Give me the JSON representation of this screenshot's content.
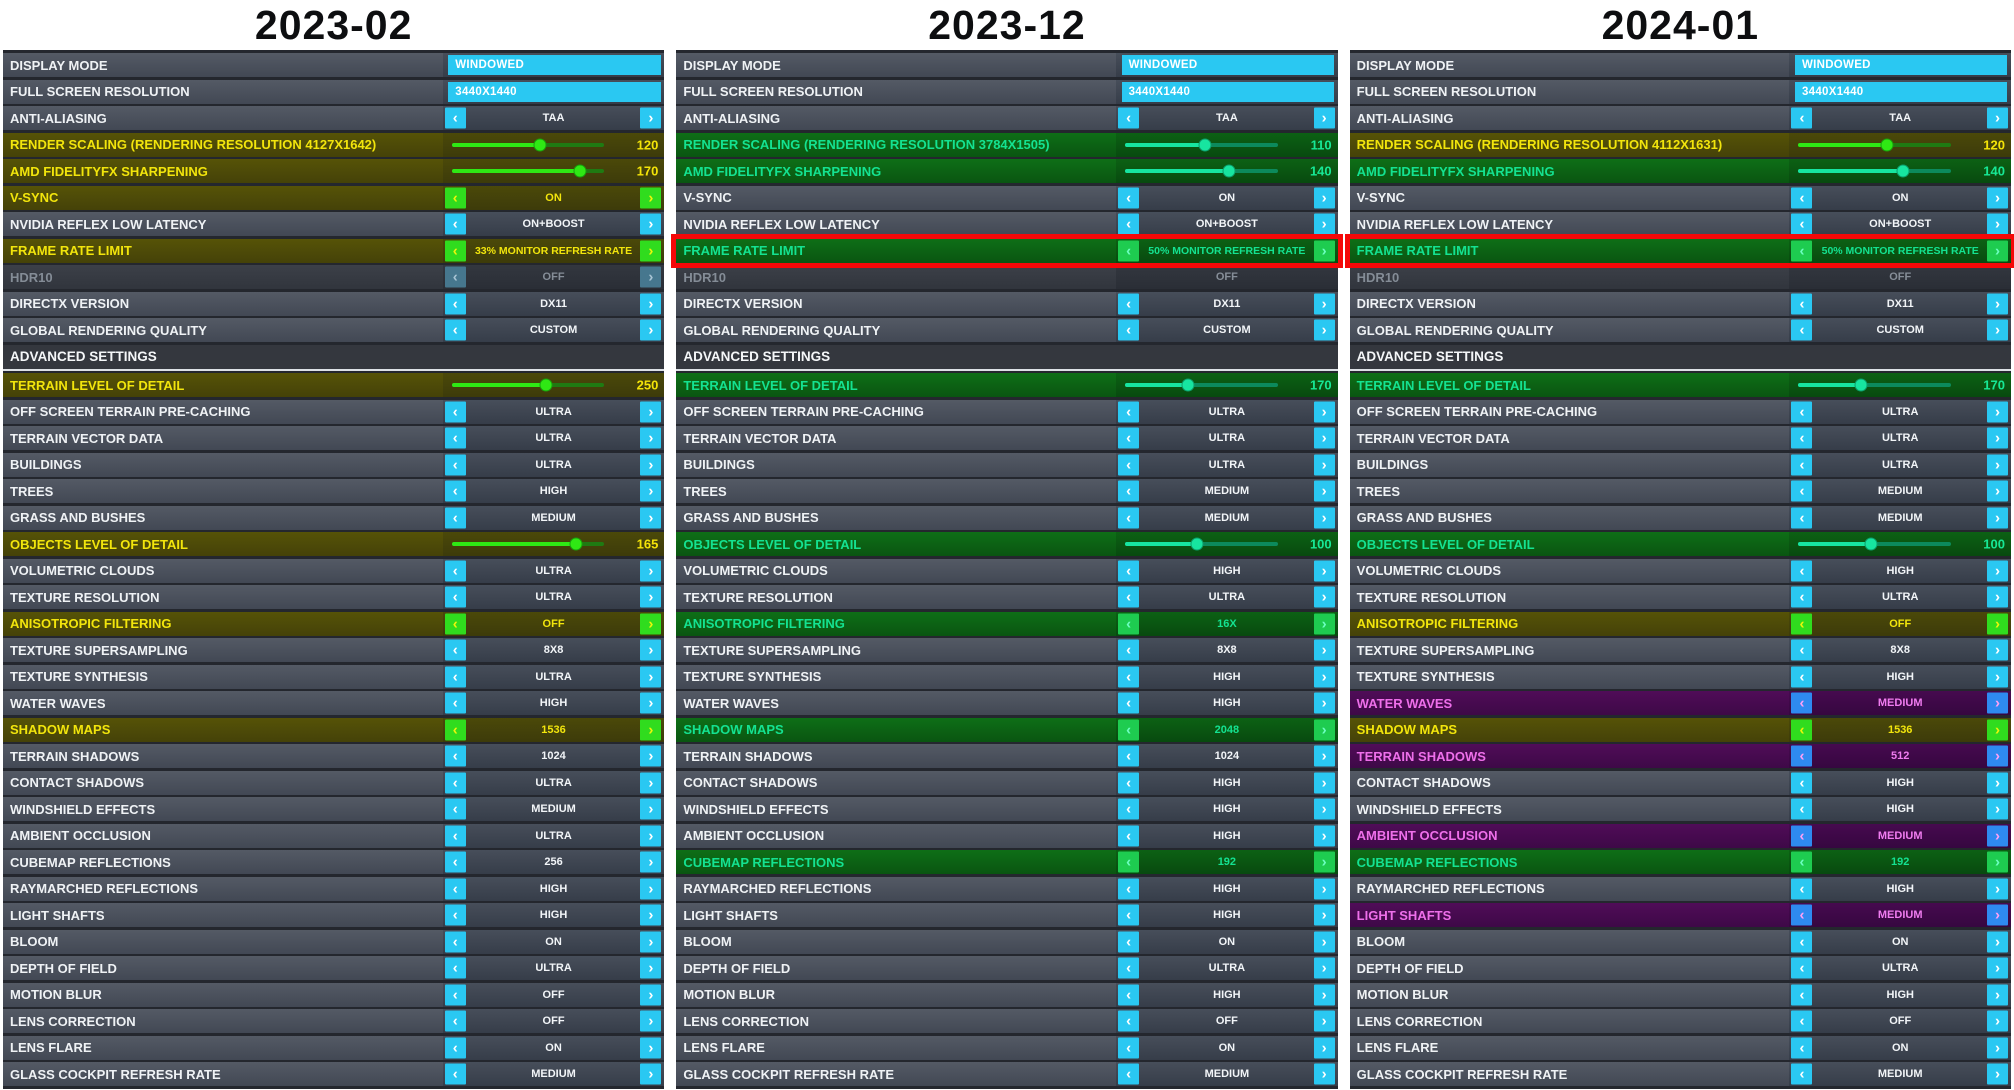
{
  "icons": {
    "left_chevron": "‹",
    "right_chevron": "›"
  },
  "colors": {
    "cyan_accent": "#2ac8f2",
    "yellow_highlight_text": "#f2e50c",
    "green_highlight_text": "#14e291",
    "purple_highlight_text": "#ee6fea",
    "green_button": "#30dc1e",
    "green_button_alt": "#1ecc50",
    "blue_button": "#2e8af0",
    "red_annotation": "#f50808",
    "slider_green": "#2fe814",
    "slider_springgreen": "#17e5a0"
  },
  "columns": [
    {
      "title": "2023-02",
      "rows": [
        {
          "label": "DISPLAY MODE",
          "type": "display",
          "value": "WINDOWED",
          "hl": "none"
        },
        {
          "label": "FULL SCREEN RESOLUTION",
          "type": "display",
          "value": "3440X1440",
          "hl": "none"
        },
        {
          "label": "ANTI-ALIASING",
          "type": "select",
          "value": "TAA",
          "hl": "none"
        },
        {
          "label": "RENDER SCALING (RENDERING RESOLUTION 4127X1642)",
          "type": "slider",
          "value": 120,
          "min": 10,
          "max": 200,
          "hl": "yellow"
        },
        {
          "label": "AMD FIDELITYFX SHARPENING",
          "type": "slider",
          "value": 170,
          "min": 10,
          "max": 200,
          "hl": "yellow"
        },
        {
          "label": "V-SYNC",
          "type": "select",
          "value": "ON",
          "hl": "yellow"
        },
        {
          "label": "NVIDIA REFLEX LOW LATENCY",
          "type": "select",
          "value": "ON+BOOST",
          "hl": "none"
        },
        {
          "label": "FRAME RATE LIMIT",
          "type": "select",
          "value": "33% MONITOR REFRESH RATE",
          "hl": "yellow"
        },
        {
          "label": "HDR10",
          "type": "select",
          "value": "OFF",
          "hl": "disabled",
          "arrows": true
        },
        {
          "label": "DIRECTX VERSION",
          "type": "select",
          "value": "DX11",
          "hl": "none"
        },
        {
          "label": "GLOBAL RENDERING QUALITY",
          "type": "select",
          "value": "CUSTOM",
          "hl": "none"
        },
        {
          "label": "ADVANCED SETTINGS",
          "type": "section"
        },
        {
          "label": "TERRAIN LEVEL OF DETAIL",
          "type": "slider",
          "value": 250,
          "min": 10,
          "max": 400,
          "hl": "yellow"
        },
        {
          "label": "OFF SCREEN TERRAIN PRE-CACHING",
          "type": "select",
          "value": "ULTRA",
          "hl": "none"
        },
        {
          "label": "TERRAIN VECTOR DATA",
          "type": "select",
          "value": "ULTRA",
          "hl": "none"
        },
        {
          "label": "BUILDINGS",
          "type": "select",
          "value": "ULTRA",
          "hl": "none"
        },
        {
          "label": "TREES",
          "type": "select",
          "value": "HIGH",
          "hl": "none"
        },
        {
          "label": "GRASS AND BUSHES",
          "type": "select",
          "value": "MEDIUM",
          "hl": "none"
        },
        {
          "label": "OBJECTS LEVEL OF DETAIL",
          "type": "slider",
          "value": 165,
          "min": 10,
          "max": 200,
          "hl": "yellow"
        },
        {
          "label": "VOLUMETRIC CLOUDS",
          "type": "select",
          "value": "ULTRA",
          "hl": "none"
        },
        {
          "label": "TEXTURE RESOLUTION",
          "type": "select",
          "value": "ULTRA",
          "hl": "none"
        },
        {
          "label": "ANISOTROPIC FILTERING",
          "type": "select",
          "value": "OFF",
          "hl": "yellow"
        },
        {
          "label": "TEXTURE SUPERSAMPLING",
          "type": "select",
          "value": "8X8",
          "hl": "none"
        },
        {
          "label": "TEXTURE SYNTHESIS",
          "type": "select",
          "value": "ULTRA",
          "hl": "none"
        },
        {
          "label": "WATER WAVES",
          "type": "select",
          "value": "HIGH",
          "hl": "none"
        },
        {
          "label": "SHADOW MAPS",
          "type": "select",
          "value": "1536",
          "hl": "yellow"
        },
        {
          "label": "TERRAIN SHADOWS",
          "type": "select",
          "value": "1024",
          "hl": "none"
        },
        {
          "label": "CONTACT SHADOWS",
          "type": "select",
          "value": "ULTRA",
          "hl": "none"
        },
        {
          "label": "WINDSHIELD EFFECTS",
          "type": "select",
          "value": "MEDIUM",
          "hl": "none"
        },
        {
          "label": "AMBIENT OCCLUSION",
          "type": "select",
          "value": "ULTRA",
          "hl": "none"
        },
        {
          "label": "CUBEMAP REFLECTIONS",
          "type": "select",
          "value": "256",
          "hl": "none"
        },
        {
          "label": "RAYMARCHED REFLECTIONS",
          "type": "select",
          "value": "HIGH",
          "hl": "none"
        },
        {
          "label": "LIGHT SHAFTS",
          "type": "select",
          "value": "HIGH",
          "hl": "none"
        },
        {
          "label": "BLOOM",
          "type": "select",
          "value": "ON",
          "hl": "none"
        },
        {
          "label": "DEPTH OF FIELD",
          "type": "select",
          "value": "ULTRA",
          "hl": "none"
        },
        {
          "label": "MOTION BLUR",
          "type": "select",
          "value": "OFF",
          "hl": "none"
        },
        {
          "label": "LENS CORRECTION",
          "type": "select",
          "value": "OFF",
          "hl": "none"
        },
        {
          "label": "LENS FLARE",
          "type": "select",
          "value": "ON",
          "hl": "none"
        },
        {
          "label": "GLASS COCKPIT REFRESH RATE",
          "type": "select",
          "value": "MEDIUM",
          "hl": "none"
        }
      ]
    },
    {
      "title": "2023-12",
      "rows": [
        {
          "label": "DISPLAY MODE",
          "type": "display",
          "value": "WINDOWED",
          "hl": "none"
        },
        {
          "label": "FULL SCREEN RESOLUTION",
          "type": "display",
          "value": "3440X1440",
          "hl": "none"
        },
        {
          "label": "ANTI-ALIASING",
          "type": "select",
          "value": "TAA",
          "hl": "none"
        },
        {
          "label": "RENDER SCALING (RENDERING RESOLUTION 3784X1505)",
          "type": "slider",
          "value": 110,
          "min": 10,
          "max": 200,
          "hl": "green"
        },
        {
          "label": "AMD FIDELITYFX SHARPENING",
          "type": "slider",
          "value": 140,
          "min": 10,
          "max": 200,
          "hl": "green"
        },
        {
          "label": "V-SYNC",
          "type": "select",
          "value": "ON",
          "hl": "none"
        },
        {
          "label": "NVIDIA REFLEX LOW LATENCY",
          "type": "select",
          "value": "ON+BOOST",
          "hl": "none"
        },
        {
          "label": "FRAME RATE LIMIT",
          "type": "select",
          "value": "50% MONITOR REFRESH RATE",
          "hl": "green",
          "red_border": true
        },
        {
          "label": "HDR10",
          "type": "select",
          "value": "OFF",
          "hl": "disabled",
          "arrows": false
        },
        {
          "label": "DIRECTX VERSION",
          "type": "select",
          "value": "DX11",
          "hl": "none"
        },
        {
          "label": "GLOBAL RENDERING QUALITY",
          "type": "select",
          "value": "CUSTOM",
          "hl": "none"
        },
        {
          "label": "ADVANCED SETTINGS",
          "type": "section"
        },
        {
          "label": "TERRAIN LEVEL OF DETAIL",
          "type": "slider",
          "value": 170,
          "min": 10,
          "max": 400,
          "hl": "green"
        },
        {
          "label": "OFF SCREEN TERRAIN PRE-CACHING",
          "type": "select",
          "value": "ULTRA",
          "hl": "none"
        },
        {
          "label": "TERRAIN VECTOR DATA",
          "type": "select",
          "value": "ULTRA",
          "hl": "none"
        },
        {
          "label": "BUILDINGS",
          "type": "select",
          "value": "ULTRA",
          "hl": "none"
        },
        {
          "label": "TREES",
          "type": "select",
          "value": "MEDIUM",
          "hl": "none"
        },
        {
          "label": "GRASS AND BUSHES",
          "type": "select",
          "value": "MEDIUM",
          "hl": "none"
        },
        {
          "label": "OBJECTS LEVEL OF DETAIL",
          "type": "slider",
          "value": 100,
          "min": 10,
          "max": 200,
          "hl": "green"
        },
        {
          "label": "VOLUMETRIC CLOUDS",
          "type": "select",
          "value": "HIGH",
          "hl": "none"
        },
        {
          "label": "TEXTURE RESOLUTION",
          "type": "select",
          "value": "ULTRA",
          "hl": "none"
        },
        {
          "label": "ANISOTROPIC FILTERING",
          "type": "select",
          "value": "16X",
          "hl": "green"
        },
        {
          "label": "TEXTURE SUPERSAMPLING",
          "type": "select",
          "value": "8X8",
          "hl": "none"
        },
        {
          "label": "TEXTURE SYNTHESIS",
          "type": "select",
          "value": "HIGH",
          "hl": "none"
        },
        {
          "label": "WATER WAVES",
          "type": "select",
          "value": "HIGH",
          "hl": "none"
        },
        {
          "label": "SHADOW MAPS",
          "type": "select",
          "value": "2048",
          "hl": "green"
        },
        {
          "label": "TERRAIN SHADOWS",
          "type": "select",
          "value": "1024",
          "hl": "none"
        },
        {
          "label": "CONTACT SHADOWS",
          "type": "select",
          "value": "HIGH",
          "hl": "none"
        },
        {
          "label": "WINDSHIELD EFFECTS",
          "type": "select",
          "value": "HIGH",
          "hl": "none"
        },
        {
          "label": "AMBIENT OCCLUSION",
          "type": "select",
          "value": "HIGH",
          "hl": "none"
        },
        {
          "label": "CUBEMAP REFLECTIONS",
          "type": "select",
          "value": "192",
          "hl": "green"
        },
        {
          "label": "RAYMARCHED REFLECTIONS",
          "type": "select",
          "value": "HIGH",
          "hl": "none"
        },
        {
          "label": "LIGHT SHAFTS",
          "type": "select",
          "value": "HIGH",
          "hl": "none"
        },
        {
          "label": "BLOOM",
          "type": "select",
          "value": "ON",
          "hl": "none"
        },
        {
          "label": "DEPTH OF FIELD",
          "type": "select",
          "value": "ULTRA",
          "hl": "none"
        },
        {
          "label": "MOTION BLUR",
          "type": "select",
          "value": "HIGH",
          "hl": "none"
        },
        {
          "label": "LENS CORRECTION",
          "type": "select",
          "value": "OFF",
          "hl": "none"
        },
        {
          "label": "LENS FLARE",
          "type": "select",
          "value": "ON",
          "hl": "none"
        },
        {
          "label": "GLASS COCKPIT REFRESH RATE",
          "type": "select",
          "value": "MEDIUM",
          "hl": "none"
        }
      ]
    },
    {
      "title": "2024-01",
      "rows": [
        {
          "label": "DISPLAY MODE",
          "type": "display",
          "value": "WINDOWED",
          "hl": "none"
        },
        {
          "label": "FULL SCREEN RESOLUTION",
          "type": "display",
          "value": "3440X1440",
          "hl": "none"
        },
        {
          "label": "ANTI-ALIASING",
          "type": "select",
          "value": "TAA",
          "hl": "none"
        },
        {
          "label": "RENDER SCALING (RENDERING RESOLUTION 4112X1631)",
          "type": "slider",
          "value": 120,
          "min": 10,
          "max": 200,
          "hl": "yellow"
        },
        {
          "label": "AMD FIDELITYFX SHARPENING",
          "type": "slider",
          "value": 140,
          "min": 10,
          "max": 200,
          "hl": "green"
        },
        {
          "label": "V-SYNC",
          "type": "select",
          "value": "ON",
          "hl": "none"
        },
        {
          "label": "NVIDIA REFLEX LOW LATENCY",
          "type": "select",
          "value": "ON+BOOST",
          "hl": "none"
        },
        {
          "label": "FRAME RATE LIMIT",
          "type": "select",
          "value": "50% MONITOR REFRESH RATE",
          "hl": "green",
          "red_border": true
        },
        {
          "label": "HDR10",
          "type": "select",
          "value": "OFF",
          "hl": "disabled",
          "arrows": false
        },
        {
          "label": "DIRECTX VERSION",
          "type": "select",
          "value": "DX11",
          "hl": "none"
        },
        {
          "label": "GLOBAL RENDERING QUALITY",
          "type": "select",
          "value": "CUSTOM",
          "hl": "none"
        },
        {
          "label": "ADVANCED SETTINGS",
          "type": "section"
        },
        {
          "label": "TERRAIN LEVEL OF DETAIL",
          "type": "slider",
          "value": 170,
          "min": 10,
          "max": 400,
          "hl": "green"
        },
        {
          "label": "OFF SCREEN TERRAIN PRE-CACHING",
          "type": "select",
          "value": "ULTRA",
          "hl": "none"
        },
        {
          "label": "TERRAIN VECTOR DATA",
          "type": "select",
          "value": "ULTRA",
          "hl": "none"
        },
        {
          "label": "BUILDINGS",
          "type": "select",
          "value": "ULTRA",
          "hl": "none"
        },
        {
          "label": "TREES",
          "type": "select",
          "value": "MEDIUM",
          "hl": "none"
        },
        {
          "label": "GRASS AND BUSHES",
          "type": "select",
          "value": "MEDIUM",
          "hl": "none"
        },
        {
          "label": "OBJECTS LEVEL OF DETAIL",
          "type": "slider",
          "value": 100,
          "min": 10,
          "max": 200,
          "hl": "green"
        },
        {
          "label": "VOLUMETRIC CLOUDS",
          "type": "select",
          "value": "HIGH",
          "hl": "none"
        },
        {
          "label": "TEXTURE RESOLUTION",
          "type": "select",
          "value": "ULTRA",
          "hl": "none"
        },
        {
          "label": "ANISOTROPIC FILTERING",
          "type": "select",
          "value": "OFF",
          "hl": "yellow"
        },
        {
          "label": "TEXTURE SUPERSAMPLING",
          "type": "select",
          "value": "8X8",
          "hl": "none"
        },
        {
          "label": "TEXTURE SYNTHESIS",
          "type": "select",
          "value": "HIGH",
          "hl": "none"
        },
        {
          "label": "WATER WAVES",
          "type": "select",
          "value": "MEDIUM",
          "hl": "purple"
        },
        {
          "label": "SHADOW MAPS",
          "type": "select",
          "value": "1536",
          "hl": "yellow"
        },
        {
          "label": "TERRAIN SHADOWS",
          "type": "select",
          "value": "512",
          "hl": "purple"
        },
        {
          "label": "CONTACT SHADOWS",
          "type": "select",
          "value": "HIGH",
          "hl": "none"
        },
        {
          "label": "WINDSHIELD EFFECTS",
          "type": "select",
          "value": "HIGH",
          "hl": "none"
        },
        {
          "label": "AMBIENT OCCLUSION",
          "type": "select",
          "value": "MEDIUM",
          "hl": "purple"
        },
        {
          "label": "CUBEMAP REFLECTIONS",
          "type": "select",
          "value": "192",
          "hl": "green"
        },
        {
          "label": "RAYMARCHED REFLECTIONS",
          "type": "select",
          "value": "HIGH",
          "hl": "none"
        },
        {
          "label": "LIGHT SHAFTS",
          "type": "select",
          "value": "MEDIUM",
          "hl": "purple"
        },
        {
          "label": "BLOOM",
          "type": "select",
          "value": "ON",
          "hl": "none"
        },
        {
          "label": "DEPTH OF FIELD",
          "type": "select",
          "value": "ULTRA",
          "hl": "none"
        },
        {
          "label": "MOTION BLUR",
          "type": "select",
          "value": "HIGH",
          "hl": "none"
        },
        {
          "label": "LENS CORRECTION",
          "type": "select",
          "value": "OFF",
          "hl": "none"
        },
        {
          "label": "LENS FLARE",
          "type": "select",
          "value": "ON",
          "hl": "none"
        },
        {
          "label": "GLASS COCKPIT REFRESH RATE",
          "type": "select",
          "value": "MEDIUM",
          "hl": "none"
        }
      ]
    }
  ]
}
